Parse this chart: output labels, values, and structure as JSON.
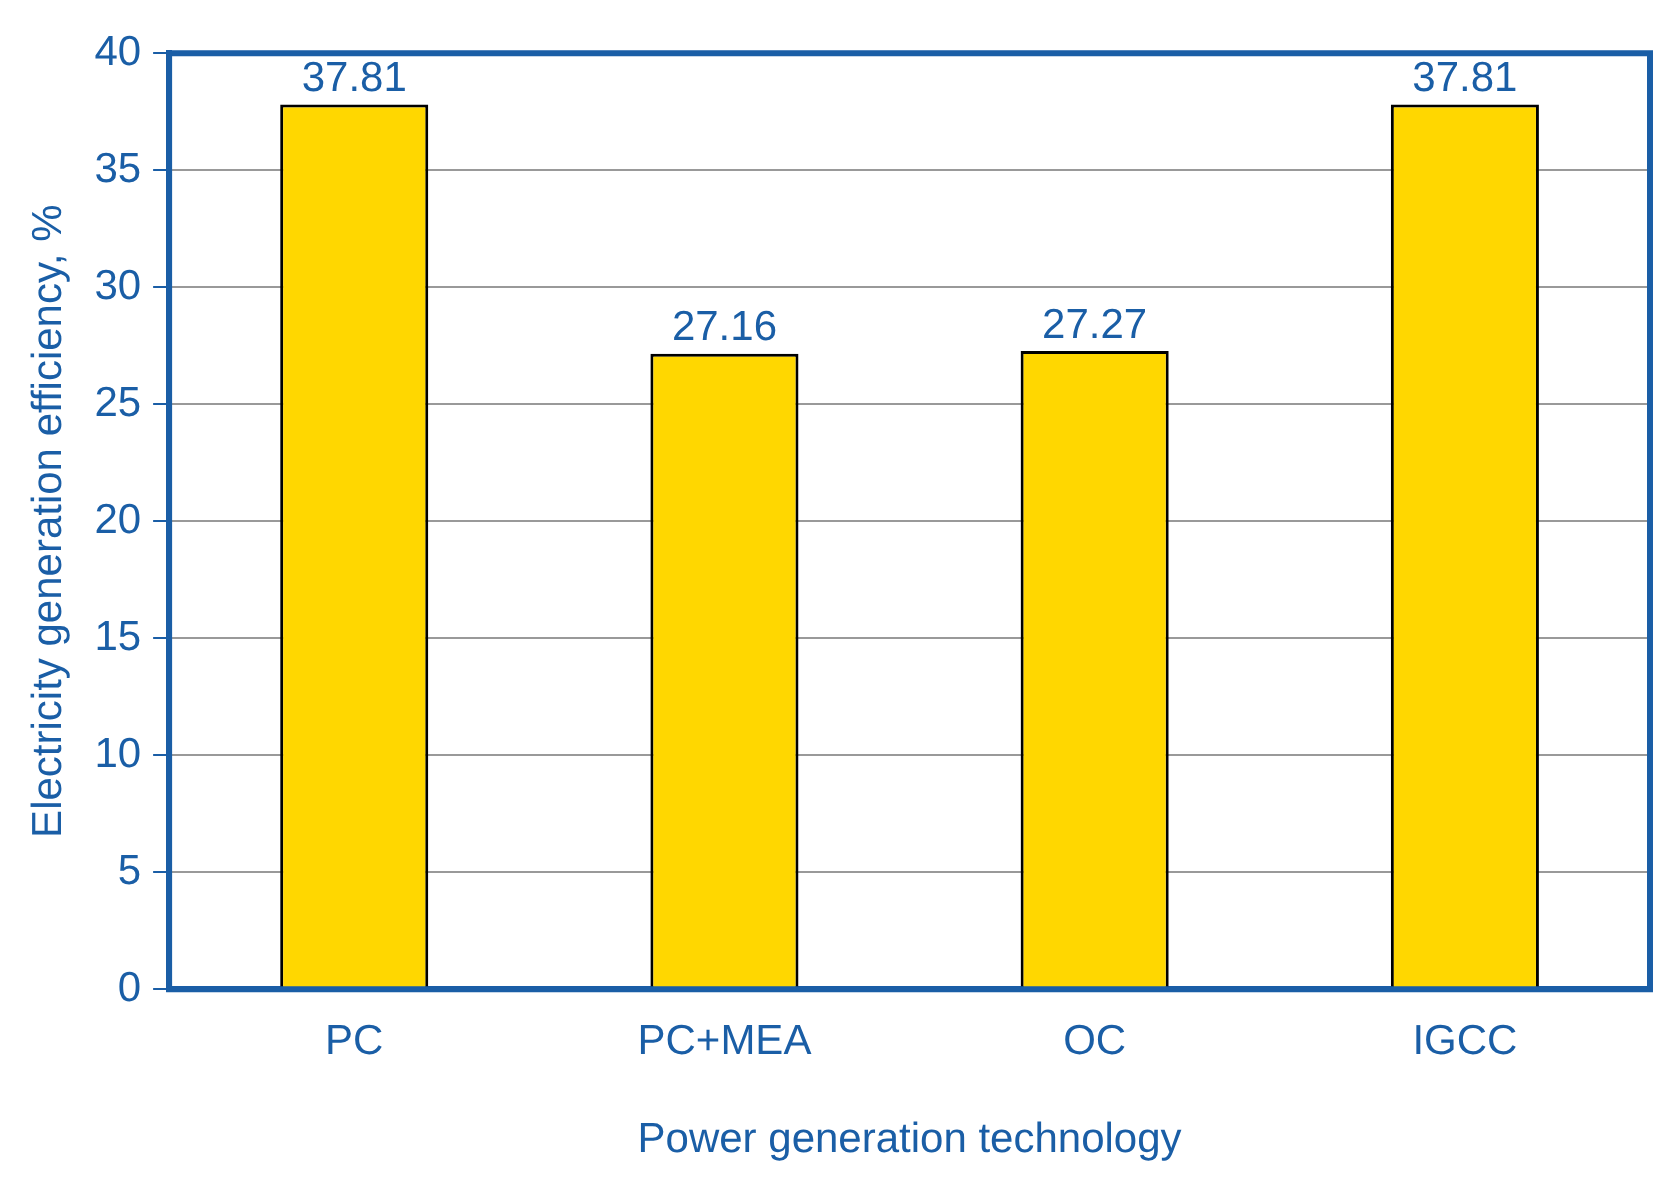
{
  "chart_data": {
    "type": "bar",
    "xlabel": "Power generation technology",
    "ylabel": "Electricity generation efficiency, %",
    "categories": [
      "PC",
      "PC+MEA",
      "OC",
      "IGCC"
    ],
    "values": [
      37.81,
      27.16,
      27.27,
      37.81
    ],
    "color": "#ffd700",
    "ylim": [
      0,
      40
    ],
    "yticks": [
      0,
      5,
      10,
      15,
      20,
      25,
      30,
      35,
      40
    ],
    "grid": "y",
    "data_labels": true,
    "legend": false
  }
}
